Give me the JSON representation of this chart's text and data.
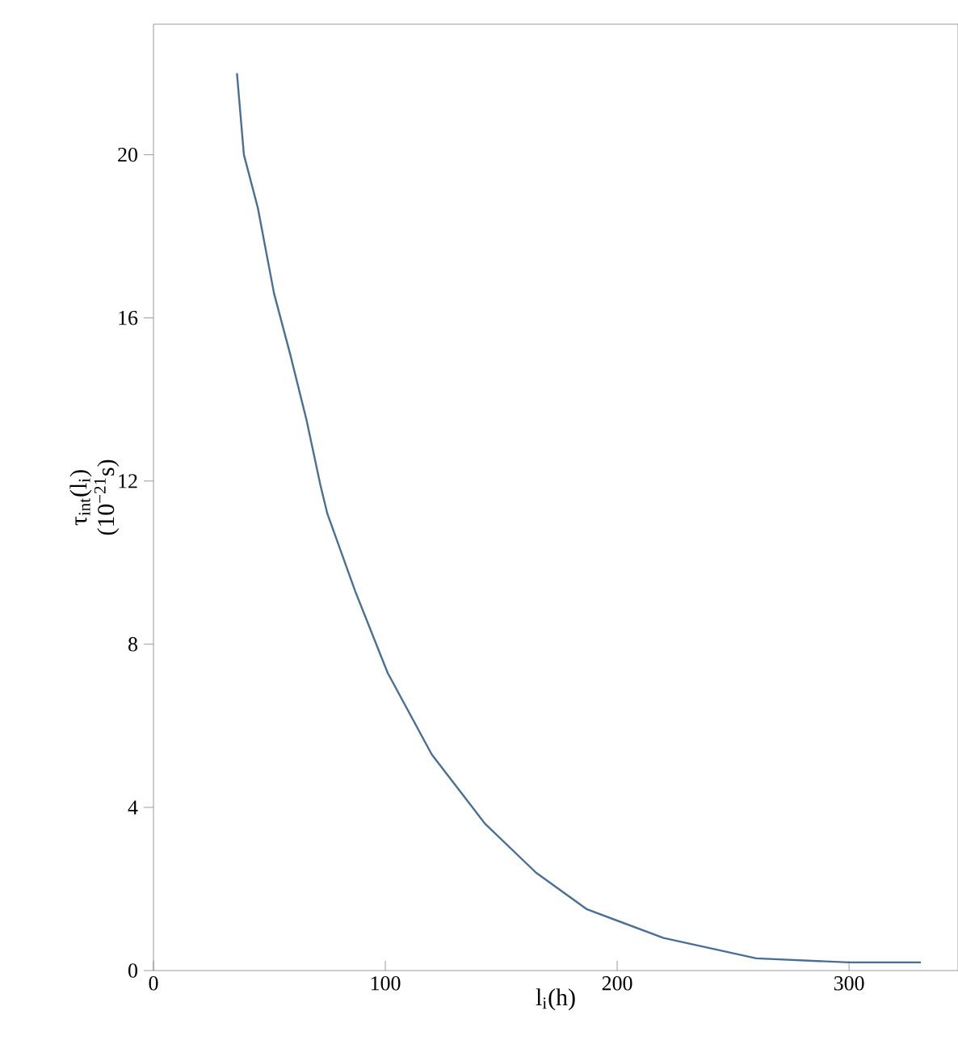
{
  "chart_data": {
    "type": "line",
    "xlabel": "l$_{i}$(h)",
    "ylabel": "τ$_{int}$(l$_{i}$) (10$^{−21}$s)",
    "xlim": [
      0,
      347
    ],
    "ylim": [
      0,
      23.2
    ],
    "xticks": [
      0,
      100,
      200,
      300
    ],
    "yticks": [
      0,
      4,
      8,
      12,
      16,
      20
    ],
    "series": [
      {
        "color": "#4a6f94",
        "x": [
          36,
          39,
          45,
          52,
          59,
          66,
          72,
          75,
          87,
          101,
          120,
          143,
          165,
          187,
          220,
          260,
          300,
          331
        ],
        "values": [
          22.0,
          20.0,
          18.7,
          16.6,
          15.1,
          13.5,
          11.9,
          11.2,
          9.3,
          7.3,
          5.3,
          3.6,
          2.4,
          1.5,
          0.8,
          0.3,
          0.2,
          0.2
        ]
      }
    ]
  }
}
